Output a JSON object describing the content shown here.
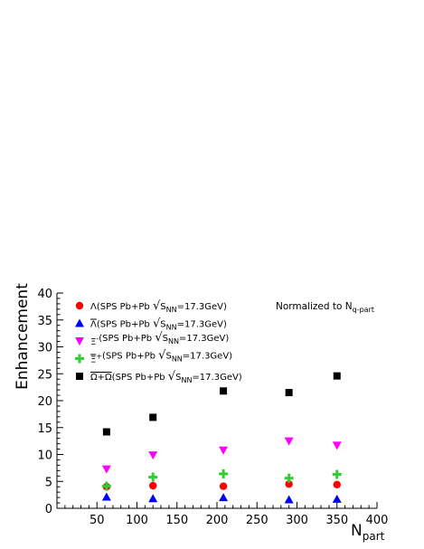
{
  "chart_data": {
    "type": "scatter",
    "ylabel": "Enhancement",
    "xlabel": "N",
    "xlabel_sub": "part",
    "xlim": [
      0,
      400
    ],
    "ylim": [
      0,
      40
    ],
    "xticks": [
      50,
      100,
      150,
      200,
      250,
      300,
      350,
      400
    ],
    "yticks": [
      0,
      5,
      10,
      15,
      20,
      25,
      30,
      35,
      40
    ],
    "grid": false,
    "legend_position": "top-left",
    "annotation": {
      "text": "Normalized to N",
      "sub": "q-part"
    },
    "series": [
      {
        "name": "Λ(SPS Pb+Pb √S_NN=17.3GeV)",
        "legend": {
          "sym": "Λ",
          "text": "(SPS Pb+Pb ",
          "sqrt": "S",
          "sub": "NN",
          "tail": "=17.3GeV)"
        },
        "marker": "circle",
        "color": "#ff0000",
        "x": [
          62,
          120,
          208,
          290,
          350
        ],
        "y": [
          4.0,
          4.2,
          4.1,
          4.5,
          4.4
        ]
      },
      {
        "name": "Λ̄(SPS Pb+Pb √S_NN=17.3GeV)",
        "legend": {
          "sym": "Λ",
          "bar": true,
          "text": "(SPS Pb+Pb ",
          "sqrt": "S",
          "sub": "NN",
          "tail": "=17.3GeV)"
        },
        "marker": "triangle-up",
        "color": "#0000ff",
        "x": [
          62,
          120,
          208,
          290,
          350
        ],
        "y": [
          2.1,
          1.8,
          2.0,
          1.6,
          1.7
        ]
      },
      {
        "name": "Ξ⁻(SPS Pb+Pb √S_NN=17.3GeV)",
        "legend": {
          "sym": "Ξ",
          "sup": "-",
          "text": "(SPS Pb+Pb ",
          "sqrt": "S",
          "sub": "NN",
          "tail": "=17.3GeV)"
        },
        "marker": "triangle-down",
        "color": "#ff00ff",
        "x": [
          62,
          120,
          208,
          290,
          350
        ],
        "y": [
          7.3,
          9.9,
          10.8,
          12.5,
          11.7
        ]
      },
      {
        "name": "Ξ̄⁺(SPS Pb+Pb √S_NN=17.3GeV)",
        "legend": {
          "sym": "Ξ",
          "bar": true,
          "sup": "+",
          "text": "(SPS Pb+Pb ",
          "sqrt": "S",
          "sub": "NN",
          "tail": "=17.3GeV)"
        },
        "marker": "cross",
        "color": "#33cc33",
        "x": [
          62,
          120,
          208,
          290,
          350
        ],
        "y": [
          4.1,
          5.8,
          6.4,
          5.6,
          6.3
        ]
      },
      {
        "name": "Ω+Ω̄(SPS Pb+Pb √S_NN=17.3GeV)",
        "legend": {
          "sym": "Ω+Ω",
          "bar_last": true,
          "text": "(SPS Pb+Pb ",
          "sqrt": "S",
          "sub": "NN",
          "tail": "=17.3GeV)"
        },
        "marker": "square",
        "color": "#000000",
        "x": [
          62,
          120,
          208,
          290,
          350
        ],
        "y": [
          14.2,
          16.9,
          21.8,
          21.5,
          24.6
        ]
      }
    ]
  }
}
